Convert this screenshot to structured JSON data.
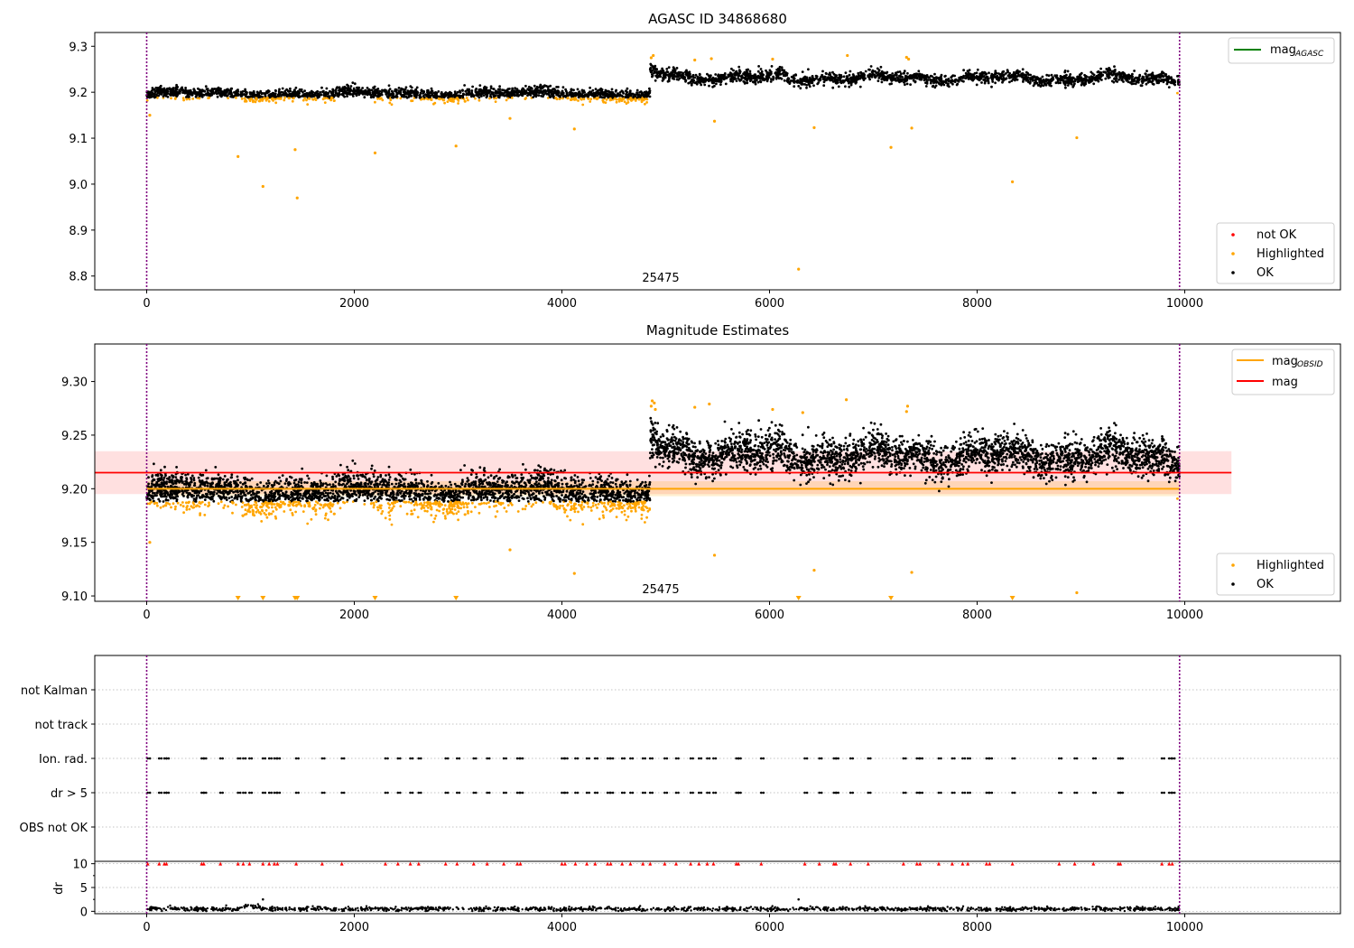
{
  "chart_data": [
    {
      "id": "p1",
      "type": "scatter",
      "title": "AGASC ID 34868680",
      "xlim": [
        -500,
        11500
      ],
      "ylim": [
        8.77,
        9.33
      ],
      "xticks": [
        0,
        2000,
        4000,
        6000,
        8000,
        10000
      ],
      "yticks": [
        8.8,
        8.9,
        9.0,
        9.1,
        9.2,
        9.3
      ],
      "ytick_labels": [
        "8.8",
        "8.9",
        "9.0",
        "9.1",
        "9.2",
        "9.3"
      ],
      "vlines": [
        0,
        9950
      ],
      "annotation": {
        "text": "25475",
        "x": 4800,
        "y": 8.79
      },
      "legend_upper": {
        "position": "upper right",
        "entries": [
          {
            "label": "mag",
            "sub": "AGASC",
            "color": "#008000"
          }
        ]
      },
      "legend_lower": {
        "position": "lower right",
        "entries": [
          {
            "label": "not OK",
            "color": "#ff0000"
          },
          {
            "label": "Highlighted",
            "color": "#ffa500"
          },
          {
            "label": "OK",
            "color": "#000000"
          }
        ]
      },
      "series": [
        {
          "name": "OK",
          "color": "#000000",
          "points_generated_from": "segments"
        },
        {
          "name": "Highlighted",
          "color": "#ffa500",
          "outliers": [
            [
              30,
              9.15
            ],
            [
              880,
              9.06
            ],
            [
              1120,
              8.995
            ],
            [
              1430,
              9.075
            ],
            [
              1450,
              8.97
            ],
            [
              2200,
              9.068
            ],
            [
              2980,
              9.083
            ],
            [
              3500,
              9.143
            ],
            [
              4120,
              9.12
            ],
            [
              5470,
              9.137
            ],
            [
              6280,
              8.815
            ],
            [
              6430,
              9.123
            ],
            [
              7170,
              9.08
            ],
            [
              7370,
              9.122
            ],
            [
              8340,
              9.005
            ],
            [
              8960,
              9.101
            ]
          ]
        }
      ],
      "segments": [
        {
          "x0": 0,
          "x1": 4850,
          "mean": 9.2,
          "low_tail": 9.175
        },
        {
          "x0": 4850,
          "x1": 9950,
          "mean": 9.228,
          "low_tail": 9.2
        }
      ]
    },
    {
      "id": "p2",
      "type": "scatter",
      "title": "Magnitude Estimates",
      "xlim": [
        -500,
        11500
      ],
      "ylim": [
        9.095,
        9.335
      ],
      "xticks": [
        0,
        2000,
        4000,
        6000,
        8000,
        10000
      ],
      "yticks": [
        9.1,
        9.15,
        9.2,
        9.25,
        9.3
      ],
      "ytick_labels": [
        "9.10",
        "9.15",
        "9.20",
        "9.25",
        "9.30"
      ],
      "vlines": [
        0,
        9950
      ],
      "annotation": {
        "text": "25475",
        "x": 4800,
        "y": 9.102
      },
      "mag_line": {
        "value": 9.215,
        "band": [
          9.195,
          9.235
        ],
        "x0": -500,
        "x1": 10450,
        "color": "#ff0000"
      },
      "obsid_line": {
        "value": 9.2,
        "band": [
          9.193,
          9.207
        ],
        "x0": 0,
        "x1": 9950,
        "color": "#ffa500"
      },
      "below_axis_markers": [
        880,
        1120,
        1430,
        1450,
        2200,
        2980,
        6280,
        7170,
        8340
      ],
      "legend_upper": {
        "position": "upper right",
        "entries": [
          {
            "label": "mag",
            "sub": "OBSID",
            "color": "#ffa500"
          },
          {
            "label": "mag",
            "color": "#ff0000"
          }
        ]
      },
      "legend_lower": {
        "position": "lower right",
        "entries": [
          {
            "label": "Highlighted",
            "color": "#ffa500"
          },
          {
            "label": "OK",
            "color": "#000000"
          }
        ]
      },
      "series": [
        {
          "name": "OK",
          "color": "#000000"
        },
        {
          "name": "Highlighted",
          "color": "#ffa500",
          "outliers": [
            [
              30,
              9.15
            ],
            [
              3500,
              9.143
            ],
            [
              4120,
              9.121
            ],
            [
              5470,
              9.138
            ],
            [
              6430,
              9.124
            ],
            [
              7370,
              9.122
            ],
            [
              8960,
              9.103
            ]
          ]
        }
      ]
    },
    {
      "id": "p3",
      "type": "scatter",
      "xlim": [
        -500,
        11500
      ],
      "categories": [
        "not Kalman",
        "not track",
        "Ion. rad.",
        "dr > 5",
        "OBS not OK"
      ],
      "vlines": [
        0,
        9950
      ],
      "flag_times": [
        10,
        120,
        170,
        190,
        530,
        550,
        710,
        880,
        930,
        990,
        1120,
        1180,
        1230,
        1260,
        1440,
        1690,
        1880,
        2300,
        2420,
        2540,
        2620,
        2880,
        2990,
        3150,
        3280,
        3440,
        3570,
        3600,
        4000,
        4030,
        4130,
        4240,
        4320,
        4440,
        4470,
        4580,
        4660,
        4780,
        4850,
        4990,
        5100,
        5240,
        5320,
        5400,
        5460,
        5680,
        5700,
        5920,
        6340,
        6480,
        6620,
        6640,
        6780,
        6950,
        7290,
        7420,
        7450,
        7630,
        7760,
        7860,
        7910,
        8090,
        8120,
        8340,
        8790,
        8940,
        9120,
        9360,
        9380,
        9780,
        9850,
        9880
      ]
    },
    {
      "id": "p4",
      "type": "scatter",
      "ylabel": "dr",
      "xlim": [
        -500,
        11500
      ],
      "ylim": [
        -0.5,
        10.5
      ],
      "xticks": [
        0,
        2000,
        4000,
        6000,
        8000,
        10000
      ],
      "yticks": [
        0,
        5,
        10
      ],
      "ytick_labels": [
        "0",
        "5",
        "10"
      ],
      "vlines": [
        0,
        9950
      ],
      "clipped_markers_at": 10,
      "series": [
        {
          "name": "dr",
          "color": "#000000",
          "typical": 0.5,
          "max": 2.5
        }
      ]
    }
  ]
}
